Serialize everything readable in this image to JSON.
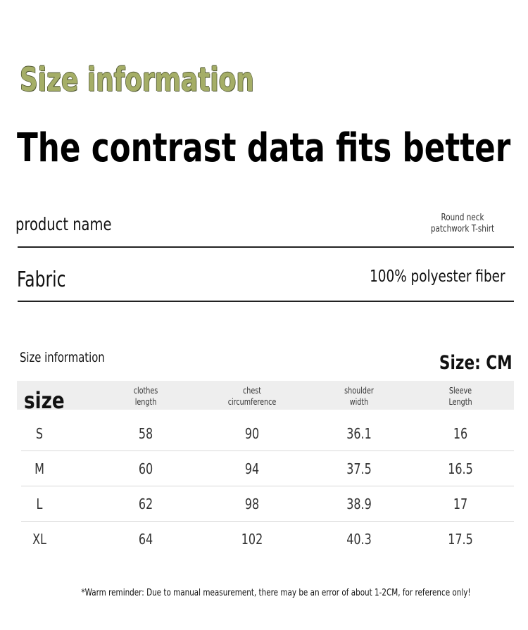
{
  "header": {
    "title": "Size information",
    "subtitle": "The contrast data fits better"
  },
  "product_info": [
    {
      "label": "product name",
      "value": "Round neck patchwork T-shirt"
    },
    {
      "label": "Fabric",
      "value": "100% polyester fiber"
    }
  ],
  "size_section": {
    "title": "Size information",
    "unit": "Size: CM"
  },
  "table": {
    "columns": [
      "size",
      "clothes length",
      "chest circumference",
      "shoulder width",
      "Sleeve Length"
    ],
    "rows": [
      [
        "S",
        58,
        90,
        36.1,
        16
      ],
      [
        "M",
        60,
        94,
        37.5,
        16.5
      ],
      [
        "L",
        62,
        98,
        38.9,
        17
      ],
      [
        "XL",
        64,
        102,
        40.3,
        17.5
      ]
    ]
  },
  "footer": "*Warm reminder: Due to manual measurement, there may be an error of about 1-2CM, for reference only!"
}
